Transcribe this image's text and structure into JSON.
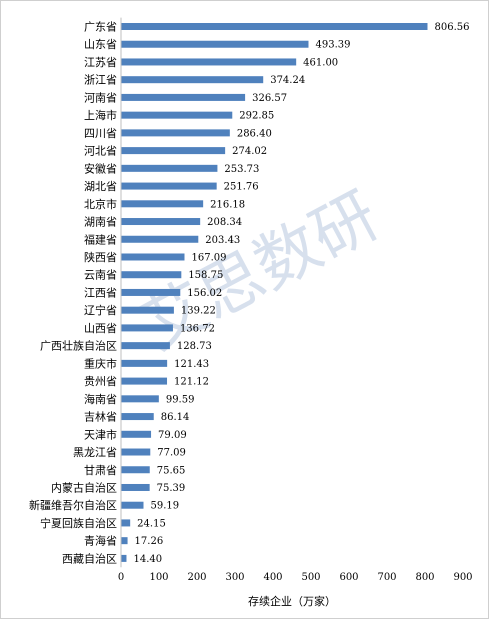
{
  "watermark": "艾思数研",
  "chart_data": {
    "type": "bar",
    "orientation": "horizontal",
    "categories": [
      "广东省",
      "山东省",
      "江苏省",
      "浙江省",
      "河南省",
      "上海市",
      "四川省",
      "河北省",
      "安徽省",
      "湖北省",
      "北京市",
      "湖南省",
      "福建省",
      "陕西省",
      "云南省",
      "江西省",
      "辽宁省",
      "山西省",
      "广西壮族自治区",
      "重庆市",
      "贵州省",
      "海南省",
      "吉林省",
      "天津市",
      "黑龙江省",
      "甘肃省",
      "内蒙古自治区",
      "新疆维吾尔自治区",
      "宁夏回族自治区",
      "青海省",
      "西藏自治区"
    ],
    "values": [
      806.56,
      493.39,
      461.0,
      374.24,
      326.57,
      292.85,
      286.4,
      274.02,
      253.73,
      251.76,
      216.18,
      208.34,
      203.43,
      167.09,
      158.75,
      156.02,
      139.22,
      136.72,
      128.73,
      121.43,
      121.12,
      99.59,
      86.14,
      79.09,
      77.09,
      75.65,
      75.39,
      59.19,
      24.15,
      17.26,
      14.4
    ],
    "value_labels": [
      "806.56",
      "493.39",
      "461.00",
      "374.24",
      "326.57",
      "292.85",
      "286.40",
      "274.02",
      "253.73",
      "251.76",
      "216.18",
      "208.34",
      "203.43",
      "167.09",
      "158.75",
      "156.02",
      "139.22",
      "136.72",
      "128.73",
      "121.43",
      "121.12",
      "99.59",
      "86.14",
      "79.09",
      "77.09",
      "75.65",
      "75.39",
      "59.19",
      "24.15",
      "17.26",
      "14.40"
    ],
    "title": "",
    "xlabel": "存续企业（万家）",
    "ylabel": "",
    "xlim": [
      0,
      900
    ],
    "xticks": [
      0,
      100,
      200,
      300,
      400,
      500,
      600,
      700,
      800,
      900
    ],
    "xtick_labels": [
      "0",
      "100",
      "200",
      "300",
      "400",
      "500",
      "600",
      "700",
      "800",
      "900"
    ],
    "grid": false,
    "legend": "none",
    "bar_color": "#4f81bd"
  }
}
